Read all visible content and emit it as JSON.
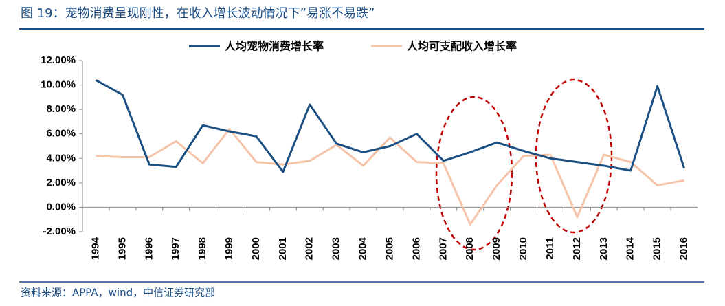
{
  "chart_data": {
    "type": "line",
    "title": "图 19：宠物消费呈现刚性，在收入增长波动情况下”易涨不易跌”",
    "source": "资料来源：APPA，wind，中信证券研究部",
    "categories": [
      "1994",
      "1995",
      "1996",
      "1997",
      "1998",
      "1999",
      "2000",
      "2001",
      "2002",
      "2003",
      "2004",
      "2005",
      "2006",
      "2007",
      "2008",
      "2009",
      "2010",
      "2011",
      "2012",
      "2013",
      "2014",
      "2015",
      "2016"
    ],
    "series": [
      {
        "name": "人均宠物消费增长率",
        "color": "#1c4f82",
        "values": [
          10.4,
          9.2,
          3.5,
          3.3,
          6.7,
          6.2,
          5.8,
          2.9,
          8.4,
          5.2,
          4.5,
          5.0,
          6.0,
          3.8,
          4.5,
          5.3,
          4.6,
          4.0,
          3.7,
          3.4,
          3.0,
          9.9,
          3.2
        ]
      },
      {
        "name": "人均可支配收入增长率",
        "color": "#f5c4a8",
        "values": [
          4.2,
          4.1,
          4.1,
          5.4,
          3.6,
          6.4,
          3.7,
          3.5,
          3.8,
          5.1,
          3.4,
          5.7,
          3.7,
          3.6,
          -1.4,
          1.8,
          4.2,
          4.3,
          -0.8,
          4.3,
          3.7,
          1.8,
          2.2
        ]
      }
    ],
    "ylim": [
      -2,
      12
    ],
    "yticks": [
      {
        "value": -2,
        "label": "-2.00%"
      },
      {
        "value": 0,
        "label": "0.00%"
      },
      {
        "value": 2,
        "label": "2.00%"
      },
      {
        "value": 4,
        "label": "4.00%"
      },
      {
        "value": 6,
        "label": "6.00%"
      },
      {
        "value": 8,
        "label": "8.00%"
      },
      {
        "value": 10,
        "label": "10.00%"
      },
      {
        "value": 12,
        "label": "12.00%"
      }
    ],
    "legend": "top"
  }
}
